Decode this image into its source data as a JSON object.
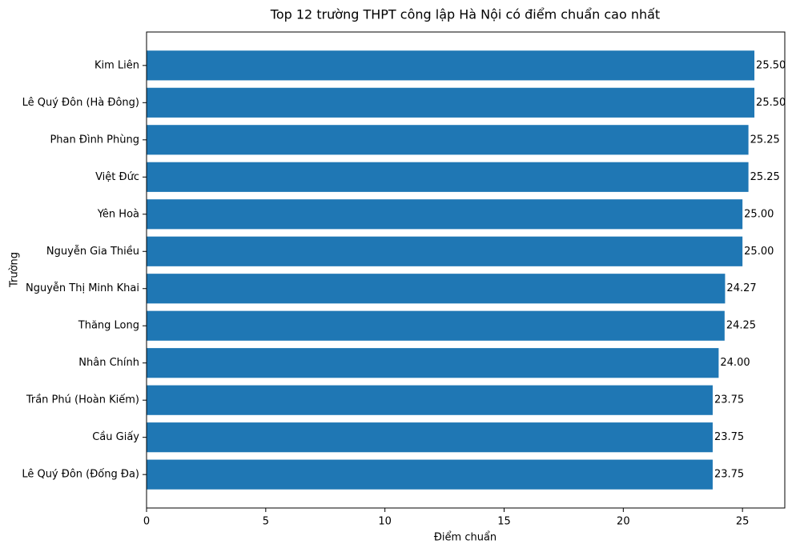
{
  "chart_data": {
    "type": "barh",
    "title": "Top 12 trường THPT công lập Hà Nội có điểm chuẩn cao nhất",
    "x_label": "Điểm chuẩn",
    "y_label": "Trường",
    "categories": [
      "Kim Liên",
      "Lê Quý Đôn (Hà Đông)",
      "Phan Đình Phùng",
      "Việt Đức",
      "Yên Hoà",
      "Nguyễn Gia Thiều",
      "Nguyễn Thị Minh Khai",
      "Thăng Long",
      "Nhân Chính",
      "Trần Phú (Hoàn Kiếm)",
      "Cầu Giấy",
      "Lê Quý Đôn (Đống Đa)"
    ],
    "values": [
      25.5,
      25.5,
      25.25,
      25.25,
      25,
      25,
      24.27,
      24.25,
      24,
      23.75,
      23.75,
      23.75
    ],
    "value_labels": [
      "25.50",
      "25.50",
      "25.25",
      "25.25",
      "25.00",
      "25.00",
      "24.27",
      "24.25",
      "24.00",
      "23.75",
      "23.75",
      "23.75"
    ],
    "color": "#1f77b4",
    "xlim": [
      0,
      26.775
    ],
    "xticks": [
      0,
      5,
      10,
      15,
      20,
      25
    ]
  }
}
